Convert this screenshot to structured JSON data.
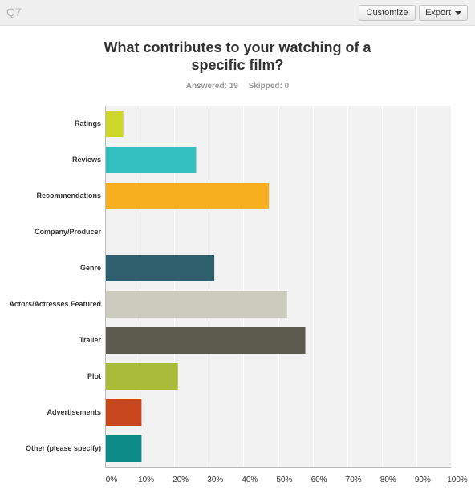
{
  "header": {
    "question_number": "Q7",
    "customize_label": "Customize",
    "export_label": "Export",
    "title": "What contributes to your watching of a specific film?",
    "answered": "Answered: 19",
    "skipped": "Skipped: 0"
  },
  "chart_data": {
    "type": "bar",
    "orientation": "horizontal",
    "categories": [
      "Ratings",
      "Reviews",
      "Recommendations",
      "Company/Producer",
      "Genre",
      "Actors/Actresses Featured",
      "Trailer",
      "Plot",
      "Advertisements",
      "Other (please specify)"
    ],
    "values": [
      5.26,
      26.32,
      47.37,
      0,
      31.58,
      52.63,
      57.89,
      21.05,
      10.53,
      10.53
    ],
    "colors": [
      "#ccd72a",
      "#33c0c0",
      "#f7ae1f",
      "#9a9a9a",
      "#2e5f6c",
      "#ccccbe",
      "#5a5a4d",
      "#a9bc3a",
      "#c8461d",
      "#0b8a87"
    ],
    "xlim": [
      0,
      100
    ],
    "ticks": [
      "0%",
      "10%",
      "20%",
      "30%",
      "40%",
      "50%",
      "60%",
      "70%",
      "80%",
      "90%",
      "100%"
    ],
    "grid": true,
    "background": "#f2f2f2"
  }
}
